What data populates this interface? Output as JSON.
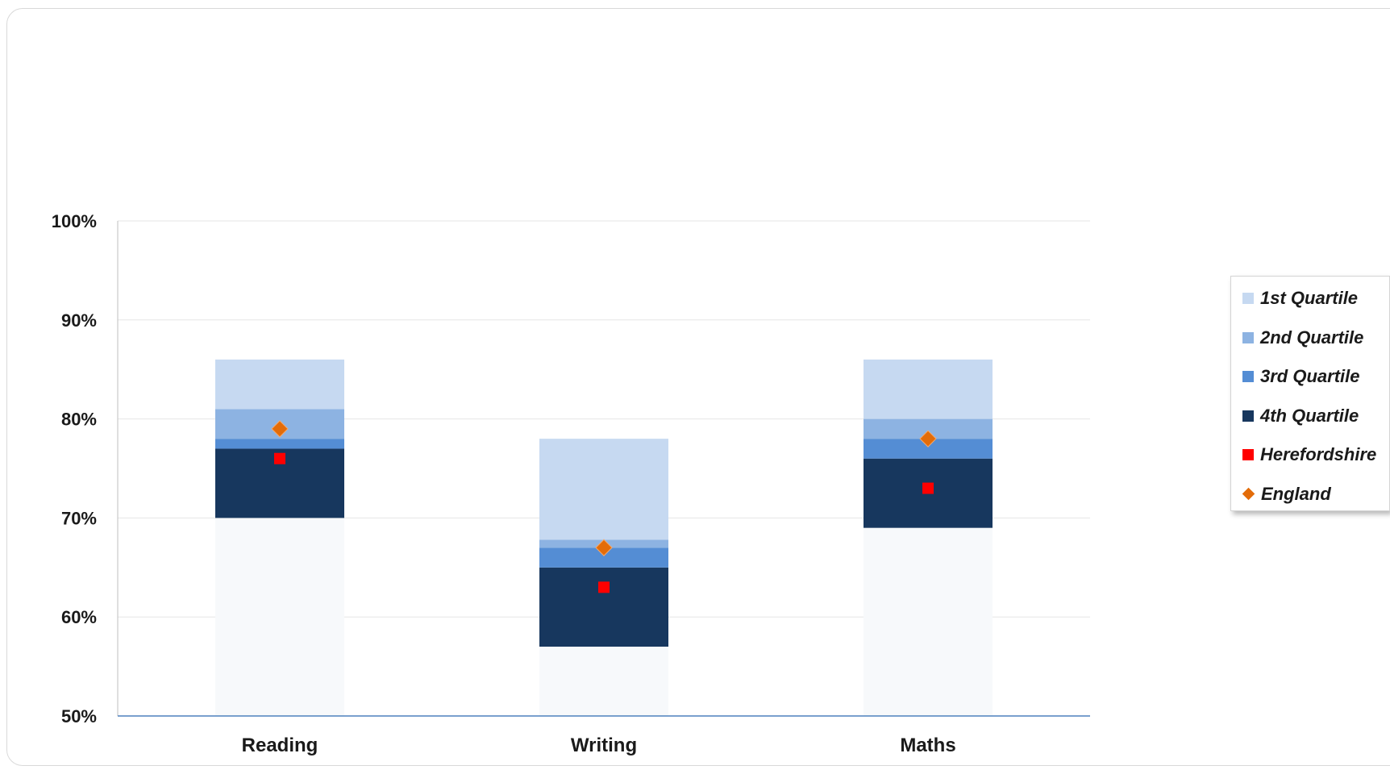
{
  "chart_data": {
    "type": "bar",
    "stacked": true,
    "categories": [
      "Reading",
      "Writing",
      "Maths"
    ],
    "ylim": [
      50,
      100
    ],
    "yticks": [
      "50%",
      "60%",
      "70%",
      "80%",
      "90%",
      "100%"
    ],
    "ytick_values": [
      50,
      60,
      70,
      80,
      90,
      100
    ],
    "grid": true,
    "legend_position": "right",
    "base": {
      "values": [
        70,
        57,
        69
      ],
      "color": "#f7f9fb"
    },
    "series": [
      {
        "name": "4th Quartile",
        "from": [
          70,
          57,
          69
        ],
        "to": [
          77,
          65,
          76
        ],
        "color": "#17375e"
      },
      {
        "name": "3rd Quartile",
        "from": [
          77,
          65,
          76
        ],
        "to": [
          78,
          67,
          78
        ],
        "color": "#548dd4"
      },
      {
        "name": "2nd Quartile",
        "from": [
          78,
          67,
          78
        ],
        "to": [
          81,
          67.8,
          80
        ],
        "color": "#8db3e2"
      },
      {
        "name": "1st Quartile",
        "from": [
          81,
          67.8,
          80
        ],
        "to": [
          86,
          78,
          86
        ],
        "color": "#c6d9f1"
      }
    ],
    "markers": [
      {
        "name": "Herefordshire",
        "values": [
          76,
          63,
          73
        ],
        "shape": "square",
        "color": "#ff0000"
      },
      {
        "name": "England",
        "values": [
          79,
          67,
          78
        ],
        "shape": "diamond",
        "color": "#e36c09"
      }
    ]
  },
  "legend": {
    "items": [
      {
        "label": "1st Quartile",
        "color": "#c6d9f1",
        "shape": "square",
        "icon": "square-swatch"
      },
      {
        "label": "2nd Quartile",
        "color": "#8db3e2",
        "shape": "square",
        "icon": "square-swatch"
      },
      {
        "label": "3rd Quartile",
        "color": "#548dd4",
        "shape": "square",
        "icon": "square-swatch"
      },
      {
        "label": "4th Quartile",
        "color": "#17375e",
        "shape": "square",
        "icon": "square-swatch"
      },
      {
        "label": "Herefordshire",
        "color": "#ff0000",
        "shape": "square",
        "icon": "square-marker"
      },
      {
        "label": "England",
        "color": "#e36c09",
        "shape": "diamond",
        "icon": "diamond-marker"
      }
    ]
  },
  "colors": {
    "axis": "#4f81bd",
    "gridline": "#e6e6e6"
  }
}
